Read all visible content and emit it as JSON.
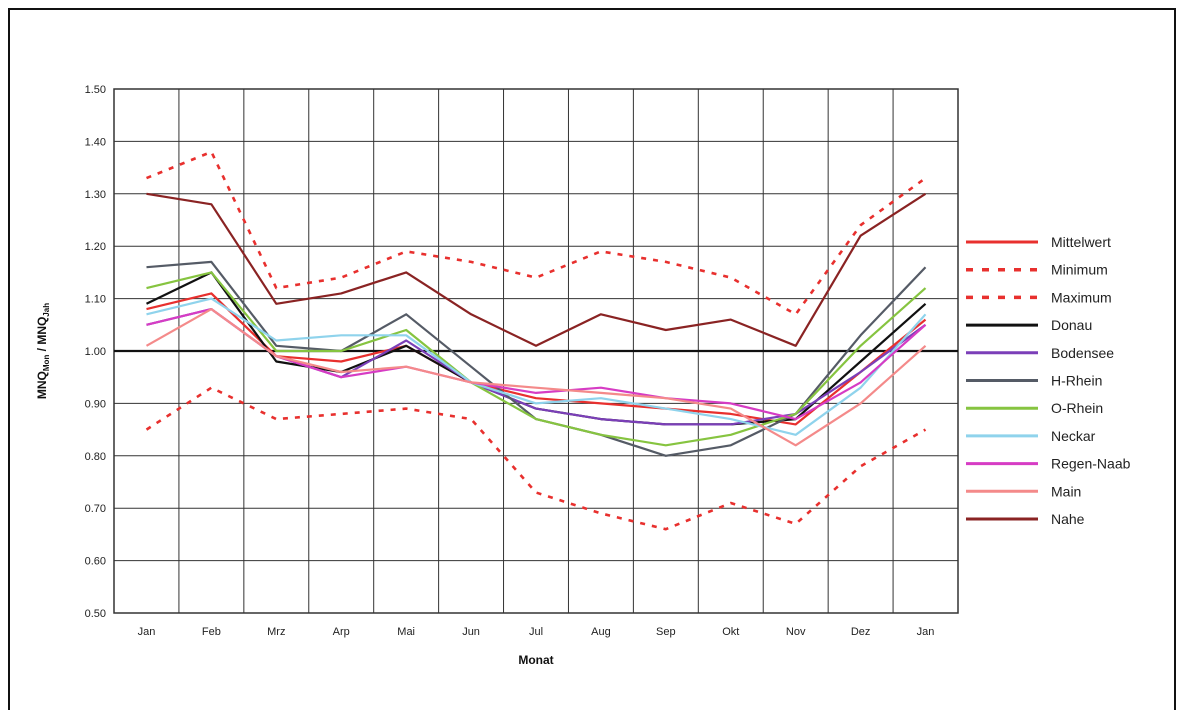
{
  "chart_data": {
    "type": "line",
    "xlabel": "Monat",
    "ylabel": "MNQ",
    "ylabel_sub": "Mon",
    "ylabel_sep": " / MNQ",
    "ylabel_sub2": "Jah",
    "categories": [
      "Jan",
      "Feb",
      "Mrz",
      "Arp",
      "Mai",
      "Jun",
      "Jul",
      "Aug",
      "Sep",
      "Okt",
      "Nov",
      "Dez",
      "Jan"
    ],
    "ylim": [
      0.5,
      1.5
    ],
    "yticks": [
      "0.50",
      "0.60",
      "0.70",
      "0.80",
      "0.90",
      "1.00",
      "1.10",
      "1.20",
      "1.30",
      "1.40",
      "1.50"
    ],
    "grid": true,
    "legend_position": "right",
    "reference_line": 1.0,
    "series": [
      {
        "name": "Mittelwert",
        "color": "#e8302e",
        "dash": "solid",
        "values": [
          1.08,
          1.11,
          0.99,
          0.98,
          1.01,
          0.94,
          0.91,
          0.9,
          0.89,
          0.88,
          0.86,
          0.96,
          1.06
        ]
      },
      {
        "name": "Minimum",
        "color": "#e8302e",
        "dash": "dotted",
        "values": [
          0.85,
          0.93,
          0.87,
          0.88,
          0.89,
          0.87,
          0.73,
          0.69,
          0.66,
          0.71,
          0.67,
          0.78,
          0.85
        ]
      },
      {
        "name": "Maximum",
        "color": "#e8302e",
        "dash": "dotted",
        "values": [
          1.33,
          1.38,
          1.12,
          1.14,
          1.19,
          1.17,
          1.14,
          1.19,
          1.17,
          1.14,
          1.07,
          1.24,
          1.33
        ]
      },
      {
        "name": "Donau",
        "color": "#111111",
        "dash": "solid",
        "values": [
          1.09,
          1.15,
          0.98,
          0.96,
          1.01,
          0.94,
          0.89,
          0.87,
          0.86,
          0.86,
          0.87,
          0.98,
          1.09
        ]
      },
      {
        "name": "Bodensee",
        "color": "#7b3fb8",
        "dash": "solid",
        "values": [
          1.05,
          1.08,
          0.99,
          0.95,
          1.02,
          0.94,
          0.89,
          0.87,
          0.86,
          0.86,
          0.88,
          0.96,
          1.05
        ]
      },
      {
        "name": "H-Rhein",
        "color": "#555b66",
        "dash": "solid",
        "values": [
          1.16,
          1.17,
          1.01,
          1.0,
          1.07,
          0.97,
          0.87,
          0.84,
          0.8,
          0.82,
          0.88,
          1.03,
          1.16
        ]
      },
      {
        "name": "O-Rhein",
        "color": "#86c440",
        "dash": "solid",
        "values": [
          1.12,
          1.15,
          1.0,
          1.0,
          1.04,
          0.94,
          0.87,
          0.84,
          0.82,
          0.84,
          0.88,
          1.01,
          1.12
        ]
      },
      {
        "name": "Neckar",
        "color": "#8fd3ec",
        "dash": "solid",
        "values": [
          1.07,
          1.1,
          1.02,
          1.03,
          1.03,
          0.94,
          0.9,
          0.91,
          0.89,
          0.87,
          0.84,
          0.93,
          1.07
        ]
      },
      {
        "name": "Regen-Naab",
        "color": "#d63cc4",
        "dash": "solid",
        "values": [
          1.05,
          1.08,
          0.99,
          0.95,
          0.97,
          0.94,
          0.92,
          0.93,
          0.91,
          0.9,
          0.87,
          0.94,
          1.05
        ]
      },
      {
        "name": "Main",
        "color": "#f48a8a",
        "dash": "solid",
        "values": [
          1.01,
          1.08,
          0.99,
          0.96,
          0.97,
          0.94,
          0.93,
          0.92,
          0.91,
          0.89,
          0.82,
          0.9,
          1.01
        ]
      },
      {
        "name": "Nahe",
        "color": "#8a2323",
        "dash": "solid",
        "values": [
          1.3,
          1.28,
          1.09,
          1.11,
          1.15,
          1.07,
          1.01,
          1.07,
          1.04,
          1.06,
          1.01,
          1.22,
          1.3
        ]
      }
    ]
  }
}
